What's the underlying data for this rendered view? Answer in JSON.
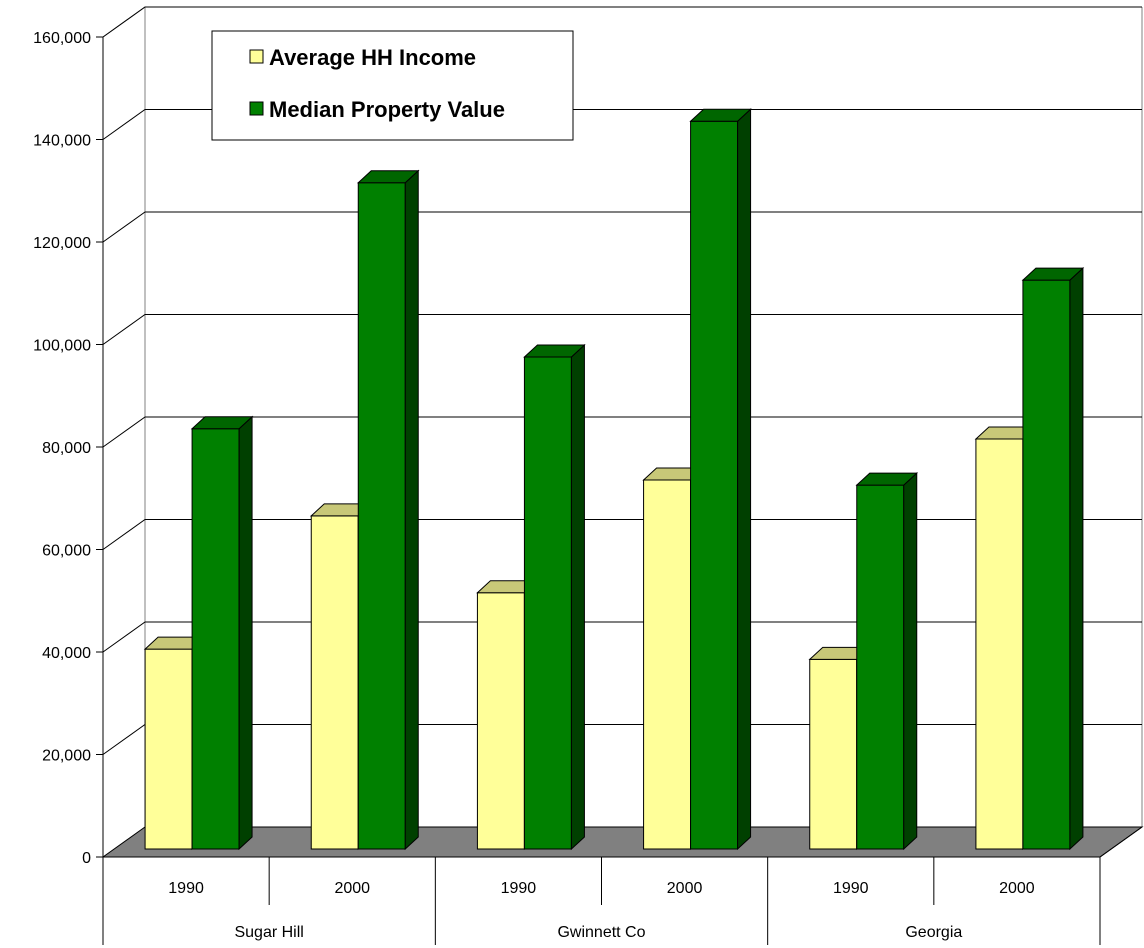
{
  "chart_data": {
    "type": "bar",
    "title": "",
    "xlabel": "",
    "ylabel": "",
    "ylim": [
      0,
      160000
    ],
    "y_ticks": [
      "0",
      "20,000",
      "40,000",
      "60,000",
      "80,000",
      "100,000",
      "120,000",
      "140,000",
      "160,000"
    ],
    "groups": [
      "Sugar Hill",
      "Gwinnett Co",
      "Georgia"
    ],
    "categories": [
      "1990",
      "2000",
      "1990",
      "2000",
      "1990",
      "2000"
    ],
    "category_group_index": [
      0,
      0,
      1,
      1,
      2,
      2
    ],
    "series": [
      {
        "name": "Average HH Income",
        "color": "#ffff99",
        "side_color": "#8a8a33",
        "top_color": "#c8c878",
        "values": [
          39000,
          65000,
          50000,
          72000,
          37000,
          80000
        ]
      },
      {
        "name": "Median Property Value",
        "color": "#008000",
        "side_color": "#004000",
        "top_color": "#006600",
        "values": [
          82000,
          130000,
          96000,
          142000,
          71000,
          111000
        ]
      }
    ],
    "grid": true,
    "legend_position": "top-left",
    "three_d": true,
    "floor_color": "#808080"
  }
}
